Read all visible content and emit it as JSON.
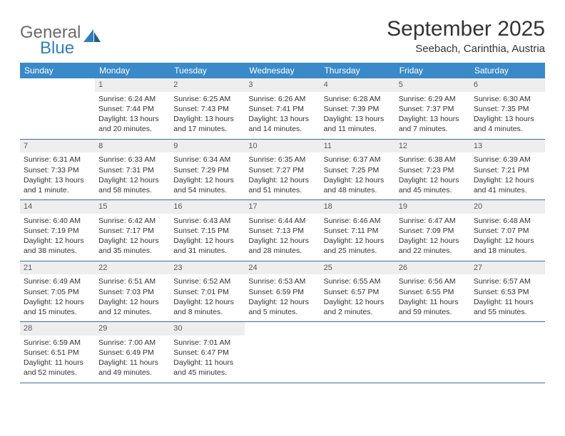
{
  "logo": {
    "line1": "General",
    "line2": "Blue"
  },
  "title": "September 2025",
  "location": "Seebach, Carinthia, Austria",
  "weekdays": [
    "Sunday",
    "Monday",
    "Tuesday",
    "Wednesday",
    "Thursday",
    "Friday",
    "Saturday"
  ],
  "colors": {
    "header_bg": "#3a8ac9",
    "header_text": "#ffffff",
    "daynum_bg": "#eeeeee",
    "row_border": "#3a6f9e",
    "logo_gray": "#6a6a6a",
    "logo_blue": "#2f7fbf",
    "body_text": "#333333"
  },
  "weeks": [
    [
      null,
      {
        "n": "1",
        "sunrise": "6:24 AM",
        "sunset": "7:44 PM",
        "daylight": "13 hours and 20 minutes."
      },
      {
        "n": "2",
        "sunrise": "6:25 AM",
        "sunset": "7:43 PM",
        "daylight": "13 hours and 17 minutes."
      },
      {
        "n": "3",
        "sunrise": "6:26 AM",
        "sunset": "7:41 PM",
        "daylight": "13 hours and 14 minutes."
      },
      {
        "n": "4",
        "sunrise": "6:28 AM",
        "sunset": "7:39 PM",
        "daylight": "13 hours and 11 minutes."
      },
      {
        "n": "5",
        "sunrise": "6:29 AM",
        "sunset": "7:37 PM",
        "daylight": "13 hours and 7 minutes."
      },
      {
        "n": "6",
        "sunrise": "6:30 AM",
        "sunset": "7:35 PM",
        "daylight": "13 hours and 4 minutes."
      }
    ],
    [
      {
        "n": "7",
        "sunrise": "6:31 AM",
        "sunset": "7:33 PM",
        "daylight": "13 hours and 1 minute."
      },
      {
        "n": "8",
        "sunrise": "6:33 AM",
        "sunset": "7:31 PM",
        "daylight": "12 hours and 58 minutes."
      },
      {
        "n": "9",
        "sunrise": "6:34 AM",
        "sunset": "7:29 PM",
        "daylight": "12 hours and 54 minutes."
      },
      {
        "n": "10",
        "sunrise": "6:35 AM",
        "sunset": "7:27 PM",
        "daylight": "12 hours and 51 minutes."
      },
      {
        "n": "11",
        "sunrise": "6:37 AM",
        "sunset": "7:25 PM",
        "daylight": "12 hours and 48 minutes."
      },
      {
        "n": "12",
        "sunrise": "6:38 AM",
        "sunset": "7:23 PM",
        "daylight": "12 hours and 45 minutes."
      },
      {
        "n": "13",
        "sunrise": "6:39 AM",
        "sunset": "7:21 PM",
        "daylight": "12 hours and 41 minutes."
      }
    ],
    [
      {
        "n": "14",
        "sunrise": "6:40 AM",
        "sunset": "7:19 PM",
        "daylight": "12 hours and 38 minutes."
      },
      {
        "n": "15",
        "sunrise": "6:42 AM",
        "sunset": "7:17 PM",
        "daylight": "12 hours and 35 minutes."
      },
      {
        "n": "16",
        "sunrise": "6:43 AM",
        "sunset": "7:15 PM",
        "daylight": "12 hours and 31 minutes."
      },
      {
        "n": "17",
        "sunrise": "6:44 AM",
        "sunset": "7:13 PM",
        "daylight": "12 hours and 28 minutes."
      },
      {
        "n": "18",
        "sunrise": "6:46 AM",
        "sunset": "7:11 PM",
        "daylight": "12 hours and 25 minutes."
      },
      {
        "n": "19",
        "sunrise": "6:47 AM",
        "sunset": "7:09 PM",
        "daylight": "12 hours and 22 minutes."
      },
      {
        "n": "20",
        "sunrise": "6:48 AM",
        "sunset": "7:07 PM",
        "daylight": "12 hours and 18 minutes."
      }
    ],
    [
      {
        "n": "21",
        "sunrise": "6:49 AM",
        "sunset": "7:05 PM",
        "daylight": "12 hours and 15 minutes."
      },
      {
        "n": "22",
        "sunrise": "6:51 AM",
        "sunset": "7:03 PM",
        "daylight": "12 hours and 12 minutes."
      },
      {
        "n": "23",
        "sunrise": "6:52 AM",
        "sunset": "7:01 PM",
        "daylight": "12 hours and 8 minutes."
      },
      {
        "n": "24",
        "sunrise": "6:53 AM",
        "sunset": "6:59 PM",
        "daylight": "12 hours and 5 minutes."
      },
      {
        "n": "25",
        "sunrise": "6:55 AM",
        "sunset": "6:57 PM",
        "daylight": "12 hours and 2 minutes."
      },
      {
        "n": "26",
        "sunrise": "6:56 AM",
        "sunset": "6:55 PM",
        "daylight": "11 hours and 59 minutes."
      },
      {
        "n": "27",
        "sunrise": "6:57 AM",
        "sunset": "6:53 PM",
        "daylight": "11 hours and 55 minutes."
      }
    ],
    [
      {
        "n": "28",
        "sunrise": "6:59 AM",
        "sunset": "6:51 PM",
        "daylight": "11 hours and 52 minutes."
      },
      {
        "n": "29",
        "sunrise": "7:00 AM",
        "sunset": "6:49 PM",
        "daylight": "11 hours and 49 minutes."
      },
      {
        "n": "30",
        "sunrise": "7:01 AM",
        "sunset": "6:47 PM",
        "daylight": "11 hours and 45 minutes."
      },
      null,
      null,
      null,
      null
    ]
  ],
  "labels": {
    "sunrise_prefix": "Sunrise: ",
    "sunset_prefix": "Sunset: ",
    "daylight_prefix": "Daylight: "
  }
}
